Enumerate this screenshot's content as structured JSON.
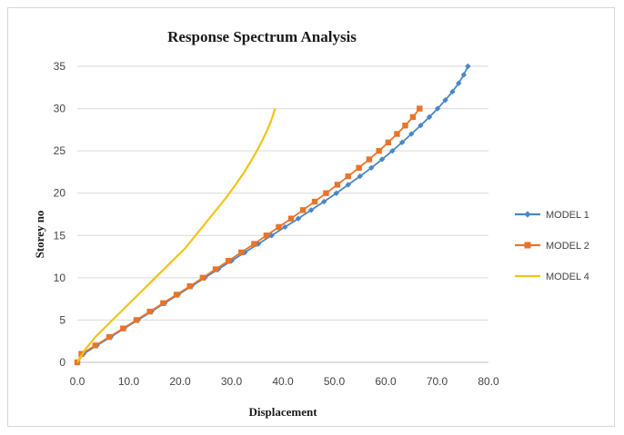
{
  "chart_data": {
    "type": "line",
    "title": "Response Spectrum Analysis",
    "xlabel": "Displacement",
    "ylabel": "Storey no",
    "xlim": [
      0,
      80
    ],
    "ylim": [
      0,
      35
    ],
    "x_ticks": [
      "0.0",
      "10.0",
      "20.0",
      "30.0",
      "40.0",
      "50.0",
      "60.0",
      "70.0",
      "80.0"
    ],
    "y_ticks": [
      "0",
      "5",
      "10",
      "15",
      "20",
      "25",
      "30",
      "35"
    ],
    "grid": "horizontal",
    "legend_position": "right",
    "series": [
      {
        "name": "MODEL 1",
        "color": "#4a86c8",
        "marker": "diamond",
        "x": [
          0,
          1.2,
          3.8,
          6.5,
          9.1,
          11.8,
          14.4,
          17.0,
          19.6,
          22.2,
          24.8,
          27.4,
          30.0,
          32.6,
          35.2,
          37.8,
          40.4,
          43.0,
          45.5,
          48.0,
          50.4,
          52.7,
          55.0,
          57.2,
          59.3,
          61.3,
          63.2,
          65.0,
          66.8,
          68.5,
          70.1,
          71.6,
          73.0,
          74.2,
          75.2,
          76.0
        ],
        "y": [
          0,
          1,
          2,
          3,
          4,
          5,
          6,
          7,
          8,
          9,
          10,
          11,
          12,
          13,
          14,
          15,
          16,
          17,
          18,
          19,
          20,
          21,
          22,
          23,
          24,
          25,
          26,
          27,
          28,
          29,
          30,
          31,
          32,
          33,
          34,
          35
        ]
      },
      {
        "name": "MODEL 2",
        "color": "#e8742a",
        "marker": "square",
        "x": [
          0,
          0.8,
          3.5,
          6.2,
          8.9,
          11.5,
          14.1,
          16.7,
          19.3,
          21.9,
          24.4,
          26.9,
          29.4,
          31.9,
          34.4,
          36.8,
          39.2,
          41.6,
          43.9,
          46.2,
          48.4,
          50.6,
          52.7,
          54.8,
          56.8,
          58.7,
          60.5,
          62.2,
          63.8,
          65.3,
          66.6
        ],
        "y": [
          0,
          1,
          2,
          3,
          4,
          5,
          6,
          7,
          8,
          9,
          10,
          11,
          12,
          13,
          14,
          15,
          16,
          17,
          18,
          19,
          20,
          21,
          22,
          23,
          24,
          25,
          26,
          27,
          28,
          29,
          30
        ]
      },
      {
        "name": "MODEL 4",
        "color": "#f3c316",
        "marker": "none",
        "x": [
          0,
          1.5,
          3.5,
          6.0,
          8.5,
          11.0,
          13.5,
          16.0,
          18.5,
          21.0,
          23.0,
          25.0,
          27.0,
          29.0,
          30.8,
          32.5,
          34.0,
          35.4,
          36.6,
          37.7,
          38.5
        ],
        "y": [
          0,
          1.5,
          3,
          4.5,
          6,
          7.5,
          9,
          10.5,
          12,
          13.5,
          15,
          16.5,
          18,
          19.5,
          21,
          22.5,
          24,
          25.5,
          27,
          28.5,
          30
        ]
      }
    ]
  }
}
